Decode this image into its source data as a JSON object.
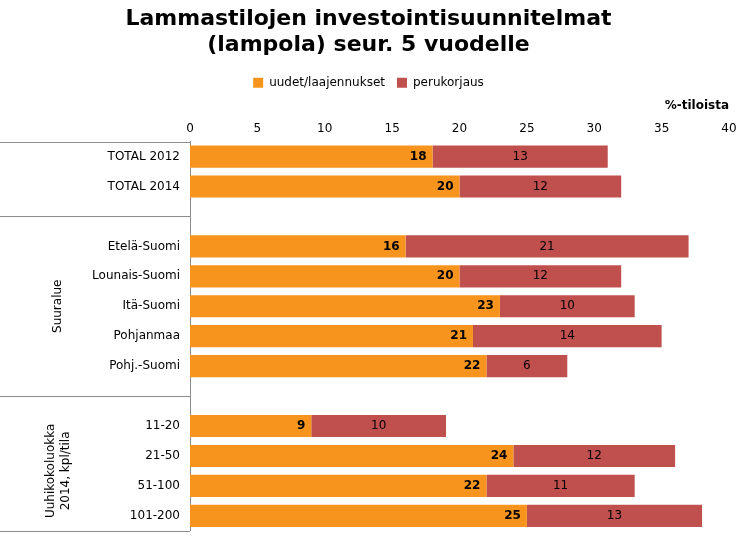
{
  "chart_data": {
    "type": "bar",
    "title": [
      "Lammastilojen investointisuunnitelmat",
      "(lampola) seur. 5 vuodelle"
    ],
    "xlabel": "%-tiloista",
    "categories": [
      "TOTAL 2012",
      "TOTAL 2014",
      null,
      "Etelä-Suomi",
      "Lounais-Suomi",
      "Itä-Suomi",
      "Pohjanmaa",
      "Pohj.-Suomi",
      null,
      "11-20",
      "21-50",
      "51-100",
      "101-200"
    ],
    "groups": [
      null,
      "Suuralue",
      [
        "Uuhikokoluokka",
        "2014, kpl/tila"
      ]
    ],
    "series": [
      {
        "name": "uudet/laajennukset",
        "color": "#F7941E",
        "values": [
          18,
          20,
          null,
          16,
          20,
          23,
          21,
          22,
          null,
          9,
          24,
          22,
          25
        ]
      },
      {
        "name": "perukorjaus",
        "color": "#C0504D",
        "values": [
          13,
          12,
          null,
          21,
          12,
          10,
          14,
          6,
          null,
          10,
          12,
          11,
          13
        ]
      }
    ],
    "orientation": "horizontal",
    "stacked": true,
    "data_labels": true,
    "grid": false,
    "legend": "top",
    "xlim": [
      0,
      40
    ],
    "xticks": [
      0,
      5,
      10,
      15,
      20,
      25,
      30,
      35,
      40
    ]
  }
}
